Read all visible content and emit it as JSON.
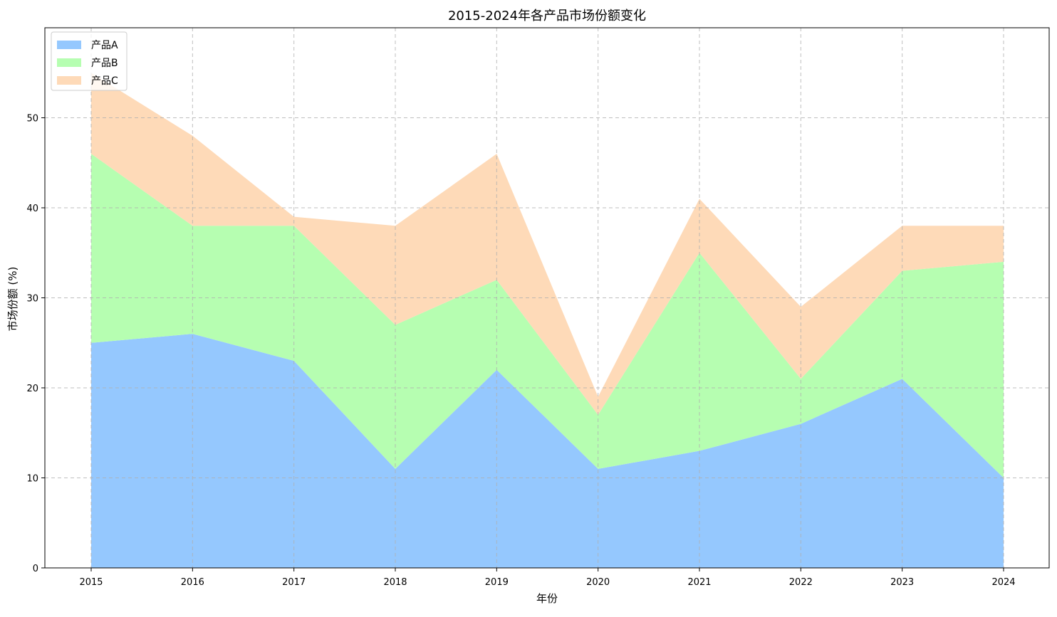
{
  "chart_data": {
    "type": "area",
    "stacked": true,
    "title": "2015-2024年各产品市场份额变化",
    "xlabel": "年份",
    "ylabel": "市场份额 (%)",
    "x": [
      "2015",
      "2016",
      "2017",
      "2018",
      "2019",
      "2020",
      "2021",
      "2022",
      "2023",
      "2024"
    ],
    "series": [
      {
        "name": "产品A",
        "color": "#95c8fe",
        "values": [
          25,
          26,
          23,
          11,
          22,
          11,
          13,
          16,
          21,
          10
        ]
      },
      {
        "name": "产品B",
        "color": "#b6feb1",
        "values": [
          21,
          12,
          15,
          16,
          10,
          6,
          22,
          5,
          12,
          24
        ]
      },
      {
        "name": "产品C",
        "color": "#fedab8",
        "values": [
          9,
          10,
          1,
          11,
          14,
          2,
          6,
          8,
          5,
          4
        ]
      }
    ],
    "yticks": [
      0,
      10,
      20,
      30,
      40,
      50
    ],
    "ylim": [
      0,
      60
    ],
    "grid": true,
    "legend_position": "top-left"
  }
}
